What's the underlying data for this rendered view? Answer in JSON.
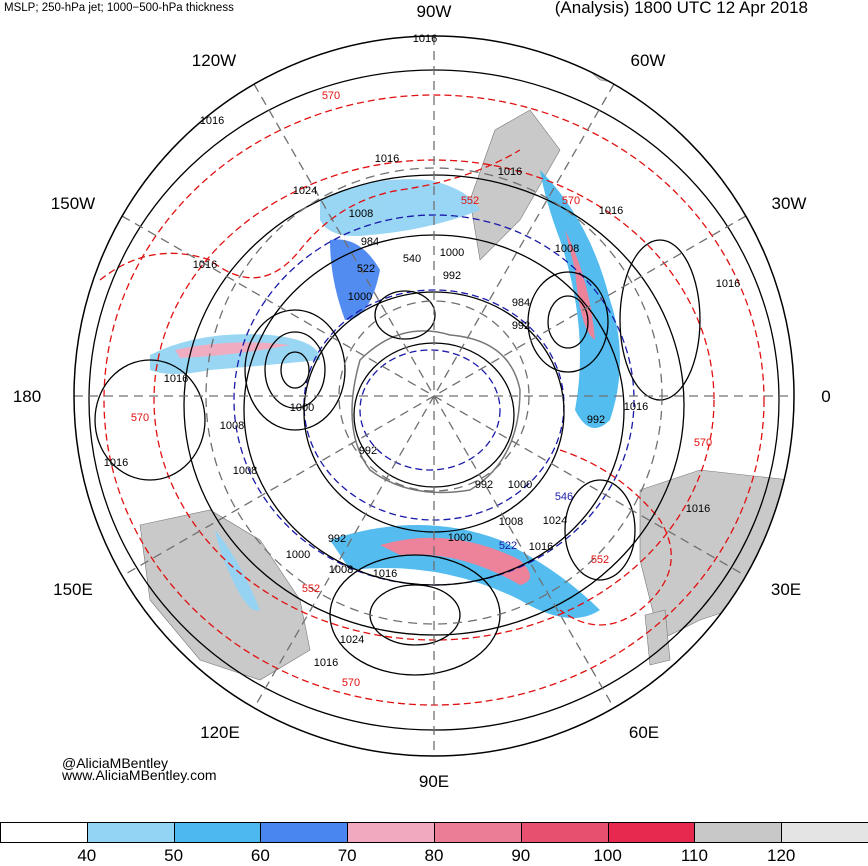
{
  "header": {
    "left_title": "MSLP; 250-hPa jet; 1000−500-hPa thickness",
    "right_title": "(Analysis) 1800 UTC 12 Apr 2018"
  },
  "longitude_labels": {
    "top": "90W",
    "top_left": "120W",
    "top_right": "60W",
    "upper_left": "150W",
    "upper_right": "30W",
    "left": "180",
    "right": "0",
    "lower_left": "150E",
    "lower_right": "30E",
    "bottom_left": "120E",
    "bottom_right": "60E",
    "bottom": "90E"
  },
  "credits": {
    "handle": "@AliciaMBentley",
    "website": "www.AliciaMBentley.com"
  },
  "isobar_labels": [
    "1016",
    "1016",
    "1024",
    "1016",
    "1016",
    "1008",
    "984",
    "1000",
    "992",
    "540",
    "522",
    "1000",
    "984",
    "992",
    "1008",
    "1016",
    "1016",
    "992",
    "1016",
    "1000",
    "1008",
    "1016",
    "1008",
    "992",
    "1000",
    "992",
    "1000",
    "1008",
    "1024",
    "1016",
    "1000",
    "1016",
    "992",
    "1008",
    "1016",
    "1024",
    "1016",
    "1016",
    "1016"
  ],
  "thickness_labels": [
    "570",
    "552",
    "570",
    "570",
    "570",
    "552",
    "552",
    "570",
    "546",
    "522"
  ],
  "colorbar": {
    "ticks": [
      "40",
      "50",
      "60",
      "70",
      "80",
      "90",
      "100",
      "110",
      "120"
    ],
    "colors": [
      "#ffffff",
      "#93d4f4",
      "#4bb9ef",
      "#4a86f0",
      "#f0a9be",
      "#ec7d96",
      "#e8506f",
      "#e8294f",
      "#c8c8c8",
      "#e4e4e4"
    ]
  },
  "colors": {
    "land": "#c9c9c9",
    "isobar": "#000000",
    "thickness": "#e11010",
    "thickness_low": "#1a1aa8",
    "grid": "#707070"
  }
}
